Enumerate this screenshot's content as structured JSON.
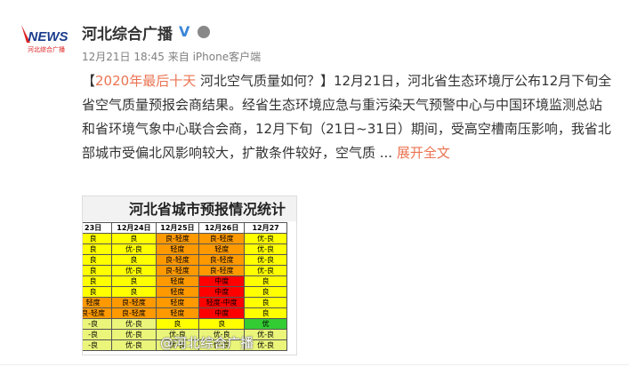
{
  "header": {
    "avatar_text": "NEWS",
    "avatar_sub": "河北综合广播",
    "name": "河北综合广播",
    "time": "12月21日 18:45",
    "source": "来自 iPhone客户端"
  },
  "post": {
    "open": "【",
    "hashtag": "2020年最后十天",
    "body": " 河北空气质量如何？】12月21日，河北省生态环境厅公布12月下旬全省空气质量预报会商结果。经省生态环境应急与重污染天气预警中心与中国环境监测总站和省环境气象中心联合会商，12月下旬（21日~31日）期间，受高空槽南压影响，我省北部城市受偏北风影响较大，扩散条件较好，空气质 ...",
    "more": "展开全文"
  },
  "image": {
    "title": "河北省城市预报情况统计",
    "watermark": "@河北综合广播",
    "columns": [
      "23日",
      "12月24日",
      "12月25日",
      "12月26日",
      "12月27"
    ],
    "rows": [
      [
        {
          "text": "良",
          "color": "#ffff00"
        },
        {
          "text": "良",
          "color": "#ffff00"
        },
        {
          "text": "良-轻度",
          "color": "#ff9900"
        },
        {
          "text": "良-轻度",
          "color": "#ff9900"
        },
        {
          "text": "优-良",
          "color": "#ffff00"
        }
      ],
      [
        {
          "text": "良",
          "color": "#ffff00"
        },
        {
          "text": "优-良",
          "color": "#ffff00"
        },
        {
          "text": "轻度",
          "color": "#ff9900"
        },
        {
          "text": "轻度",
          "color": "#ff9900"
        },
        {
          "text": "优-良",
          "color": "#ffff00"
        }
      ],
      [
        {
          "text": "良",
          "color": "#ffff00"
        },
        {
          "text": "良",
          "color": "#ffff00"
        },
        {
          "text": "良-轻度",
          "color": "#ff9900"
        },
        {
          "text": "良-轻度",
          "color": "#ff9900"
        },
        {
          "text": "优-良",
          "color": "#ffff00"
        }
      ],
      [
        {
          "text": "良",
          "color": "#ffff00"
        },
        {
          "text": "优-良",
          "color": "#ffff00"
        },
        {
          "text": "良-轻度",
          "color": "#ff9900"
        },
        {
          "text": "良-轻度",
          "color": "#ff9900"
        },
        {
          "text": "优-良",
          "color": "#ffff00"
        }
      ],
      [
        {
          "text": "良",
          "color": "#ffff00"
        },
        {
          "text": "良",
          "color": "#ffff00"
        },
        {
          "text": "轻度",
          "color": "#ff9900"
        },
        {
          "text": "中度",
          "color": "#ff0000"
        },
        {
          "text": "良",
          "color": "#ffff00"
        }
      ],
      [
        {
          "text": "良",
          "color": "#ffff00"
        },
        {
          "text": "良",
          "color": "#ffff00"
        },
        {
          "text": "轻度",
          "color": "#ff9900"
        },
        {
          "text": "中度",
          "color": "#ff0000"
        },
        {
          "text": "良",
          "color": "#ffff00"
        }
      ],
      [
        {
          "text": "轻度",
          "color": "#ff9900"
        },
        {
          "text": "良-轻度",
          "color": "#ff9900"
        },
        {
          "text": "轻度",
          "color": "#ff9900"
        },
        {
          "text": "轻度-中度",
          "color": "#ff0000"
        },
        {
          "text": "良",
          "color": "#ffff00"
        }
      ],
      [
        {
          "text": "良-轻度",
          "color": "#ff9900"
        },
        {
          "text": "良-轻度",
          "color": "#ff9900"
        },
        {
          "text": "轻度",
          "color": "#ff9900"
        },
        {
          "text": "中度",
          "color": "#ff0000"
        },
        {
          "text": "良",
          "color": "#ffff00"
        }
      ],
      [
        {
          "text": "-良",
          "color": "#eaf57a"
        },
        {
          "text": "优-良",
          "color": "#eaf57a"
        },
        {
          "text": "良",
          "color": "#ffff00"
        },
        {
          "text": "良",
          "color": "#ffff00"
        },
        {
          "text": "优",
          "color": "#33cc33"
        }
      ],
      [
        {
          "text": "-良",
          "color": "#eaf57a"
        },
        {
          "text": "优-良",
          "color": "#eaf57a"
        },
        {
          "text": "优-良",
          "color": "#eaf57a"
        },
        {
          "text": "优-良",
          "color": "#eaf57a"
        },
        {
          "text": "优-良",
          "color": "#eaf57a"
        }
      ],
      [
        {
          "text": "-良",
          "color": "#eaf57a"
        },
        {
          "text": "优-良",
          "color": "#eaf57a"
        },
        {
          "text": "优-良",
          "color": "#eaf57a"
        },
        {
          "text": "优-良",
          "color": "#eaf57a"
        },
        {
          "text": "优-良",
          "color": "#eaf57a"
        }
      ]
    ]
  }
}
